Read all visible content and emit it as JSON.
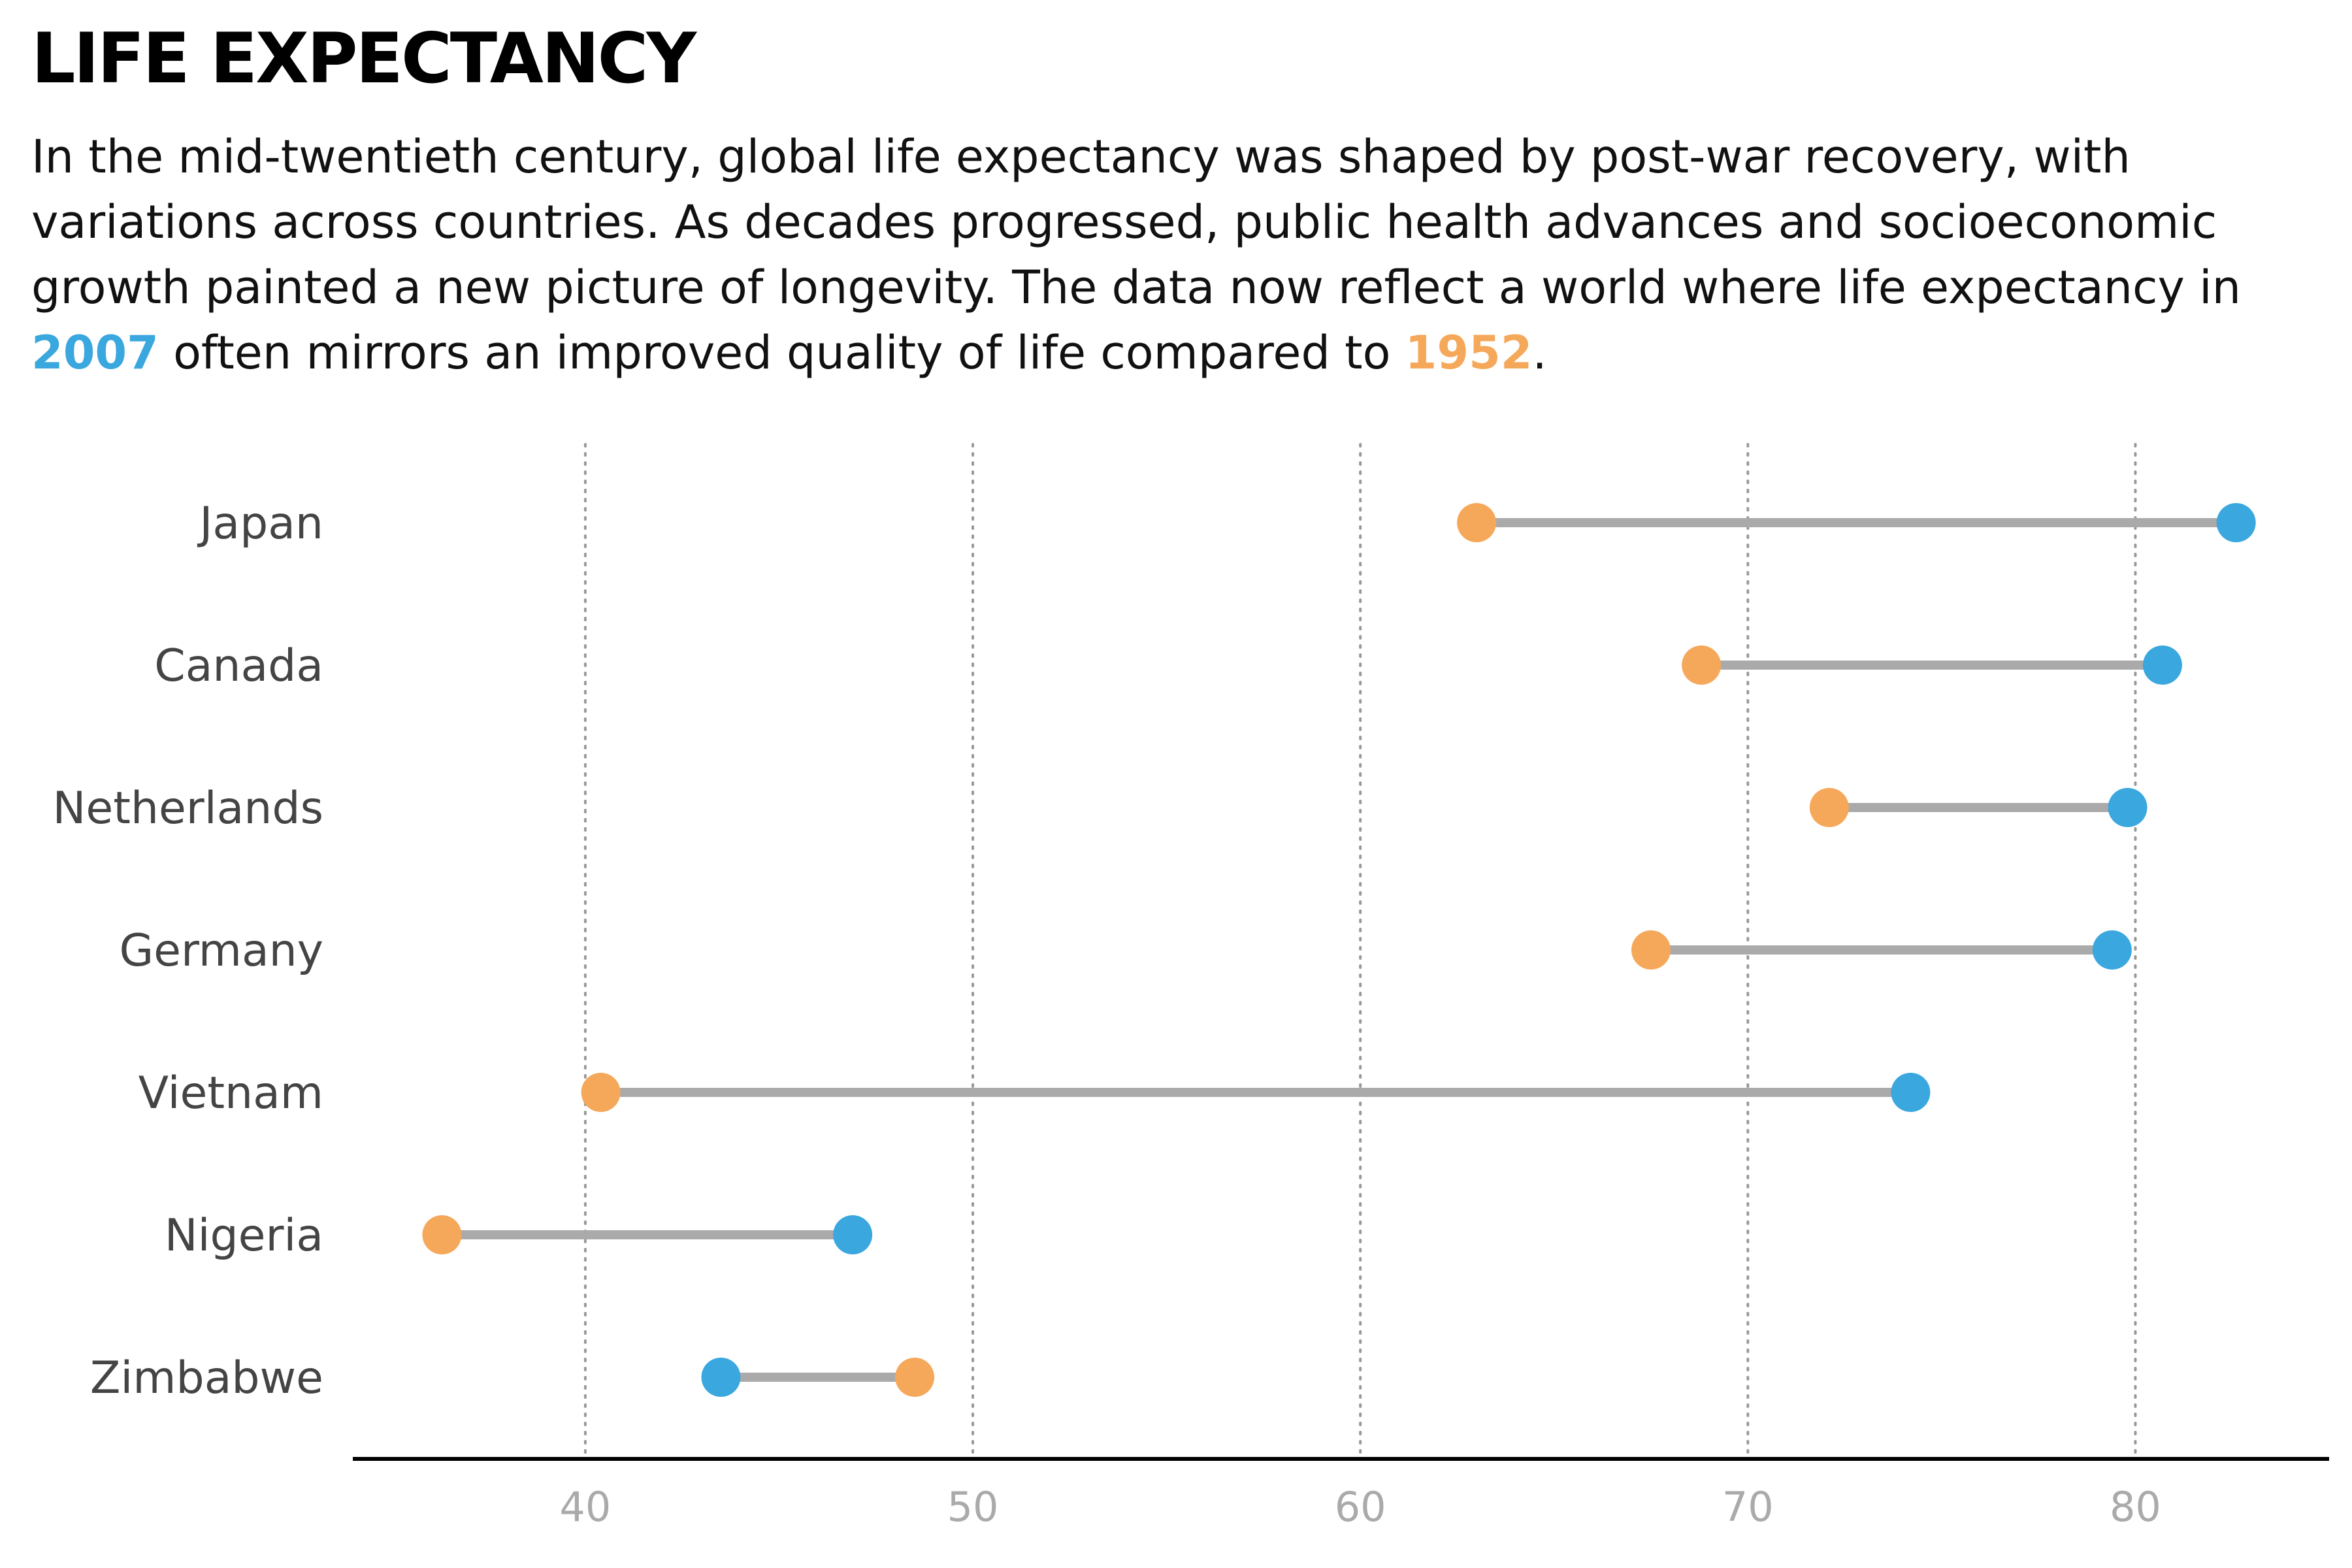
{
  "title": "LIFE EXPECTANCY",
  "description": {
    "part1": "In the mid-twentieth century, global life expectancy was shaped by post-war recovery, with variations across countries. As decades progressed, public health advances and socioeconomic growth painted a new picture of longevity. The data now reflect a world where life expectancy in ",
    "highlight_2007": "2007",
    "part2": " often mirrors an improved quality of life compared to ",
    "highlight_1952": "1952",
    "part3": "."
  },
  "colors": {
    "year_2007": "#3aa7df",
    "year_1952": "#f5a85a",
    "connector": "#aaaaaa",
    "grid": "#999999",
    "axis": "#000000"
  },
  "chart_data": {
    "type": "dumbbell",
    "categories": [
      "Japan",
      "Canada",
      "Netherlands",
      "Germany",
      "Vietnam",
      "Nigeria",
      "Zimbabwe"
    ],
    "series": [
      {
        "name": "1952",
        "values": [
          63.0,
          68.8,
          72.1,
          67.5,
          40.4,
          36.3,
          48.5
        ]
      },
      {
        "name": "2007",
        "values": [
          82.6,
          80.7,
          79.8,
          79.4,
          74.2,
          46.9,
          43.5
        ]
      }
    ],
    "xticks": [
      40,
      50,
      60,
      70,
      80
    ],
    "xlim": [
      34,
      85
    ],
    "grid": "vertical dotted"
  }
}
